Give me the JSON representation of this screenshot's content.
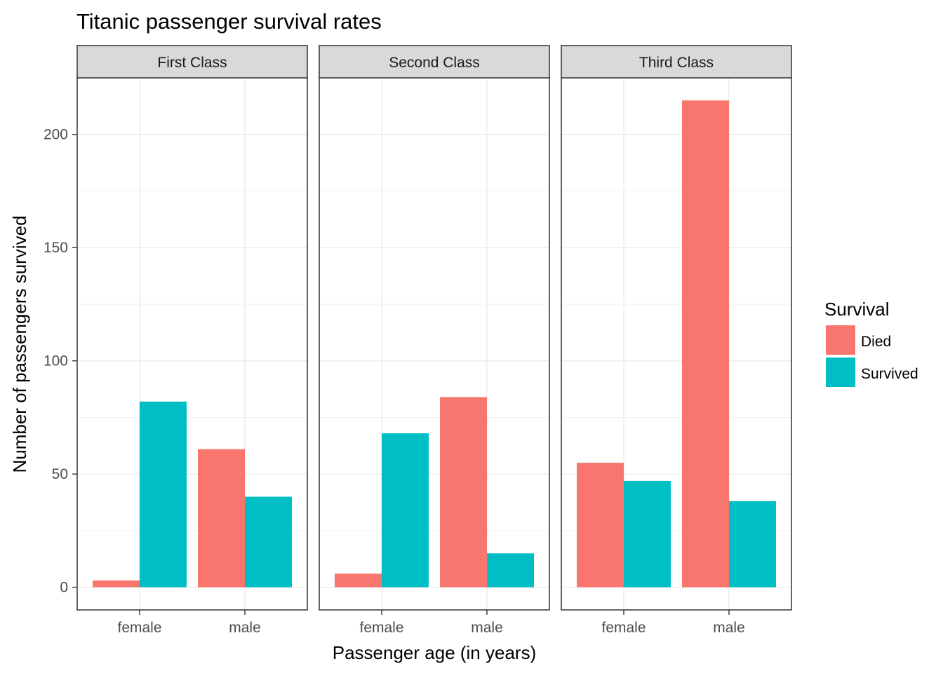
{
  "chart_data": {
    "type": "bar",
    "title": "Titanic passenger survival rates",
    "xlabel": "Passenger age (in years)",
    "ylabel": "Number of passengers survived",
    "ylim": [
      -10,
      225
    ],
    "yticks": [
      0,
      50,
      100,
      150,
      200
    ],
    "categories": [
      "female",
      "male"
    ],
    "grid": true,
    "legend": {
      "title": "Survival",
      "placement": "right",
      "entries": [
        {
          "name": "Died",
          "color": "#F8766D"
        },
        {
          "name": "Survived",
          "color": "#00BFC4"
        }
      ]
    },
    "panels": [
      {
        "name": "First Class",
        "series": [
          {
            "name": "Died",
            "values": [
              3,
              61
            ]
          },
          {
            "name": "Survived",
            "values": [
              82,
              40
            ]
          }
        ]
      },
      {
        "name": "Second Class",
        "series": [
          {
            "name": "Died",
            "values": [
              6,
              84
            ]
          },
          {
            "name": "Survived",
            "values": [
              68,
              15
            ]
          }
        ]
      },
      {
        "name": "Third Class",
        "series": [
          {
            "name": "Died",
            "values": [
              55,
              215
            ]
          },
          {
            "name": "Survived",
            "values": [
              47,
              38
            ]
          }
        ]
      }
    ]
  }
}
